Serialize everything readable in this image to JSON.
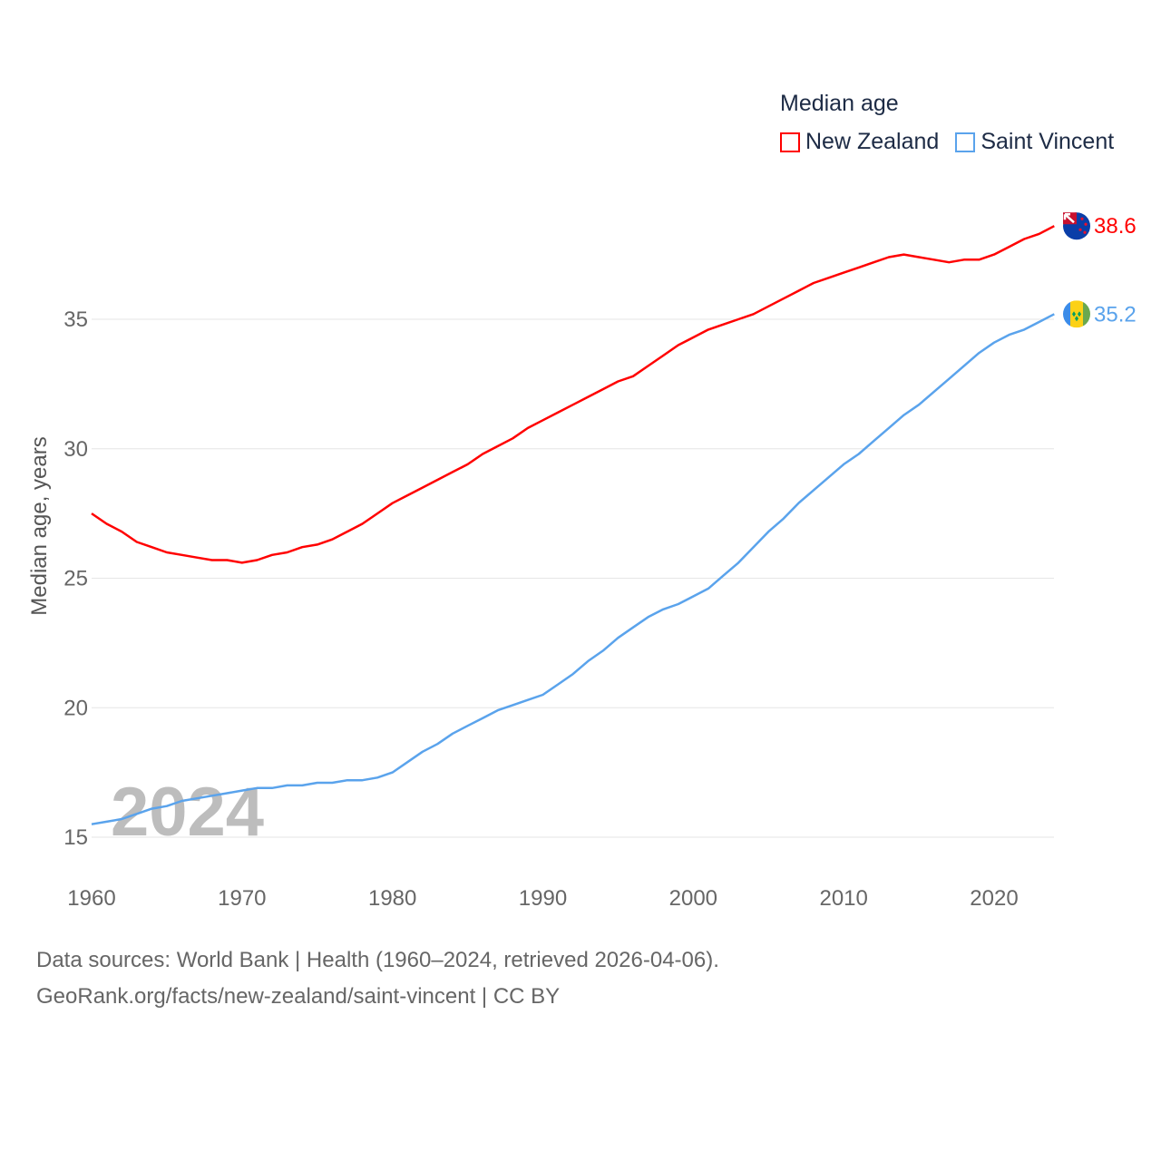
{
  "chart_data": {
    "type": "line",
    "title": "Median age",
    "watermark_year": "2024",
    "xlabel": "",
    "ylabel": "Median age, years",
    "xlim": [
      1960,
      2024
    ],
    "ylim": [
      13.5,
      39.5
    ],
    "x_ticks": [
      1960,
      1970,
      1980,
      1990,
      2000,
      2010,
      2020
    ],
    "y_ticks": [
      15,
      20,
      25,
      30,
      35
    ],
    "grid": true,
    "legend_placement": "top-right",
    "x": [
      1960,
      1961,
      1962,
      1963,
      1964,
      1965,
      1966,
      1967,
      1968,
      1969,
      1970,
      1971,
      1972,
      1973,
      1974,
      1975,
      1976,
      1977,
      1978,
      1979,
      1980,
      1981,
      1982,
      1983,
      1984,
      1985,
      1986,
      1987,
      1988,
      1989,
      1990,
      1991,
      1992,
      1993,
      1994,
      1995,
      1996,
      1997,
      1998,
      1999,
      2000,
      2001,
      2002,
      2003,
      2004,
      2005,
      2006,
      2007,
      2008,
      2009,
      2010,
      2011,
      2012,
      2013,
      2014,
      2015,
      2016,
      2017,
      2018,
      2019,
      2020,
      2021,
      2022,
      2023,
      2024
    ],
    "series": [
      {
        "name": "New Zealand",
        "color": "#ff0000",
        "end_label": "38.6",
        "flag": "new-zealand-flag",
        "values": [
          27.5,
          27.1,
          26.8,
          26.4,
          26.2,
          26.0,
          25.9,
          25.8,
          25.7,
          25.7,
          25.6,
          25.7,
          25.9,
          26.0,
          26.2,
          26.3,
          26.5,
          26.8,
          27.1,
          27.5,
          27.9,
          28.2,
          28.5,
          28.8,
          29.1,
          29.4,
          29.8,
          30.1,
          30.4,
          30.8,
          31.1,
          31.4,
          31.7,
          32.0,
          32.3,
          32.6,
          32.8,
          33.2,
          33.6,
          34.0,
          34.3,
          34.6,
          34.8,
          35.0,
          35.2,
          35.5,
          35.8,
          36.1,
          36.4,
          36.6,
          36.8,
          37.0,
          37.2,
          37.4,
          37.5,
          37.4,
          37.3,
          37.2,
          37.3,
          37.3,
          37.5,
          37.8,
          38.1,
          38.3,
          38.6
        ]
      },
      {
        "name": "Saint Vincent",
        "color": "#5aa3ec",
        "end_label": "35.2",
        "flag": "saint-vincent-flag",
        "values": [
          15.5,
          15.6,
          15.7,
          15.9,
          16.1,
          16.2,
          16.4,
          16.5,
          16.6,
          16.7,
          16.8,
          16.9,
          16.9,
          17.0,
          17.0,
          17.1,
          17.1,
          17.2,
          17.2,
          17.3,
          17.5,
          17.9,
          18.3,
          18.6,
          19.0,
          19.3,
          19.6,
          19.9,
          20.1,
          20.3,
          20.5,
          20.9,
          21.3,
          21.8,
          22.2,
          22.7,
          23.1,
          23.5,
          23.8,
          24.0,
          24.3,
          24.6,
          25.1,
          25.6,
          26.2,
          26.8,
          27.3,
          27.9,
          28.4,
          28.9,
          29.4,
          29.8,
          30.3,
          30.8,
          31.3,
          31.7,
          32.2,
          32.7,
          33.2,
          33.7,
          34.1,
          34.4,
          34.6,
          34.9,
          35.2
        ]
      }
    ]
  },
  "footer": {
    "line1": "Data sources: World Bank | Health (1960–2024, retrieved 2026-04-06).",
    "line2": "GeoRank.org/facts/new-zealand/saint-vincent | CC BY"
  }
}
